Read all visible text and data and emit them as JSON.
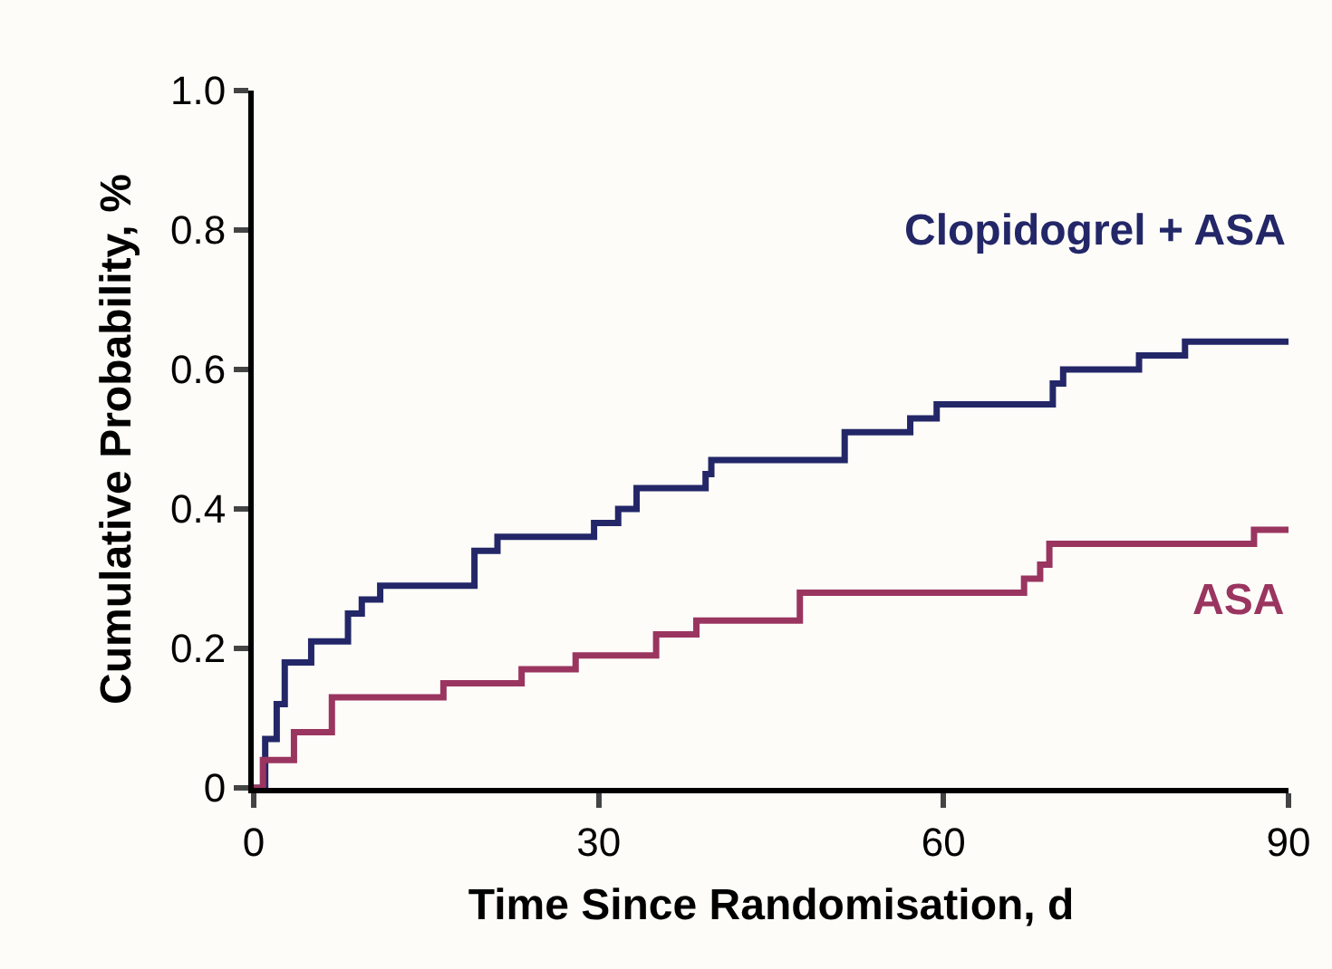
{
  "chart_data": {
    "type": "step",
    "xlabel": "Time Since Randomisation, d",
    "ylabel": "Cumulative Probability, %",
    "xlim": [
      0,
      90
    ],
    "xticks": [
      0,
      30,
      60,
      90
    ],
    "ylim": [
      0,
      1
    ],
    "yticks": [
      0,
      0.2,
      0.4,
      0.6,
      0.8,
      {
        "value": 1,
        "label": "1.0"
      }
    ],
    "grid": false,
    "legend": false,
    "marker": "none",
    "line_style": "solid",
    "series": [
      {
        "name": "Clopidogrel + ASA",
        "color": "#232768",
        "x": [
          0,
          1,
          2,
          2.7,
          5,
          8.2,
          9.4,
          11,
          19.2,
          21.2,
          29.6,
          31.7,
          33.3,
          39.3,
          39.8,
          51.4,
          57.1,
          59.4,
          69.5,
          70.4,
          77,
          81,
          90
        ],
        "values": [
          0,
          0.07,
          0.12,
          0.18,
          0.21,
          0.25,
          0.27,
          0.29,
          0.34,
          0.36,
          0.38,
          0.4,
          0.43,
          0.45,
          0.47,
          0.51,
          0.53,
          0.55,
          0.58,
          0.6,
          0.62,
          0.64,
          0.64
        ]
      },
      {
        "name": "ASA",
        "color": "#9a3560",
        "x": [
          0,
          0.8,
          3.5,
          6.8,
          16.5,
          23.3,
          28,
          35,
          38.5,
          47.5,
          67,
          68.4,
          69.2,
          87,
          90
        ],
        "values": [
          0,
          0.04,
          0.08,
          0.13,
          0.15,
          0.17,
          0.19,
          0.22,
          0.24,
          0.28,
          0.3,
          0.32,
          0.35,
          0.37,
          0.37
        ]
      }
    ]
  }
}
